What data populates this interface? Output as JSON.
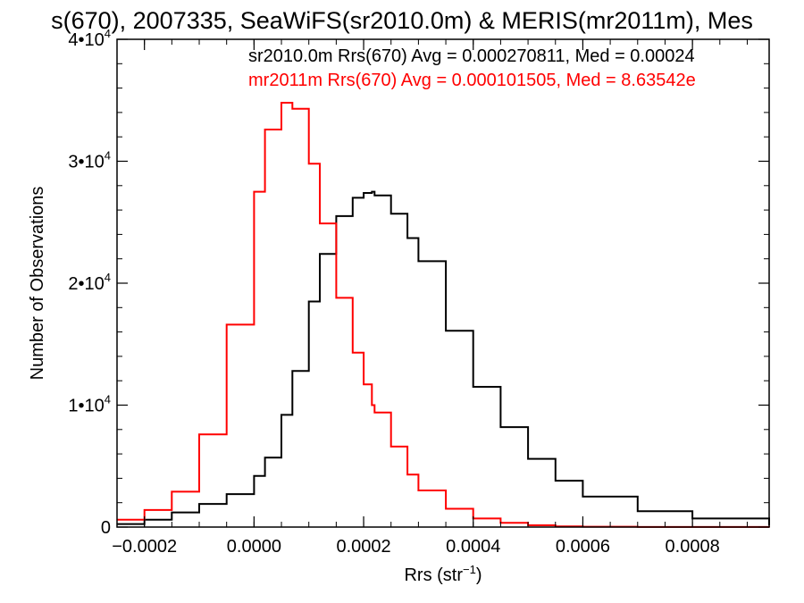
{
  "chart_data": {
    "type": "line",
    "title": "s(670), 2007335, SeaWiFS(sr2010.0m) & MERIS(mr2011m), Mes",
    "xlabel": "Rrs (str",
    "xlabel_sup": "−1",
    "xlabel_close": ")",
    "ylabel": "Number of Observations",
    "xlim": [
      -0.00025,
      0.00094
    ],
    "ylim": [
      0,
      40000
    ],
    "grid": false,
    "legend_placement": "top-right",
    "x_ticks": [
      {
        "value": -0.0002,
        "label": "−0.0002"
      },
      {
        "value": 0.0,
        "label": "0.0000"
      },
      {
        "value": 0.0002,
        "label": "0.0002"
      },
      {
        "value": 0.0004,
        "label": "0.0004"
      },
      {
        "value": 0.0006,
        "label": "0.0006"
      },
      {
        "value": 0.0008,
        "label": "0.0008"
      }
    ],
    "y_ticks": [
      {
        "value": 0,
        "base": "0",
        "exp": ""
      },
      {
        "value": 10000,
        "base": "1•10",
        "exp": "4"
      },
      {
        "value": 20000,
        "base": "2•10",
        "exp": "4"
      },
      {
        "value": 30000,
        "base": "3•10",
        "exp": "4"
      },
      {
        "value": 40000,
        "base": "4•10",
        "exp": "4"
      }
    ],
    "legend": [
      {
        "text": "sr2010.0m Rrs(670) Avg = 0.000270811, Med = 0.00024",
        "color": "#000000"
      },
      {
        "text": "mr2011m Rrs(670) Avg = 0.000101505, Med = 8.63542e",
        "color": "#ff0000"
      }
    ],
    "x": [
      -0.00025,
      -0.0002,
      -0.00015,
      -0.0001,
      -5e-05,
      0.0,
      2e-05,
      5e-05,
      7e-05,
      0.0001,
      0.00012,
      0.00015,
      0.00018,
      0.0002,
      0.000215,
      0.00022,
      0.00025,
      0.00028,
      0.0003,
      0.00035,
      0.0004,
      0.00045,
      0.0005,
      0.00055,
      0.0006,
      0.0007,
      0.0008,
      0.00094
    ],
    "series": [
      {
        "name": "sr2010.0m",
        "color": "#000000",
        "values": [
          250,
          600,
          1200,
          1900,
          2700,
          4200,
          5700,
          9200,
          12800,
          18500,
          22400,
          25500,
          27000,
          27400,
          27500,
          27200,
          25700,
          23700,
          21800,
          16100,
          11500,
          8200,
          5600,
          3800,
          2500,
          1300,
          700,
          150
        ]
      },
      {
        "name": "mr2011m",
        "color": "#ff0000",
        "values": [
          600,
          1400,
          2900,
          7600,
          16600,
          27500,
          32600,
          34800,
          34300,
          29800,
          24900,
          18800,
          14300,
          11700,
          10000,
          9400,
          6600,
          4300,
          3000,
          1500,
          700,
          350,
          150,
          60,
          30,
          10,
          5,
          0
        ]
      }
    ]
  }
}
